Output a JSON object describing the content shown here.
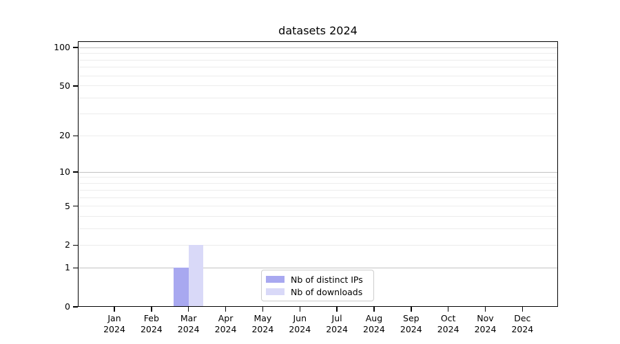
{
  "title": "datasets 2024",
  "chart_data": {
    "type": "bar",
    "title": "datasets 2024",
    "categories": [
      "Jan 2024",
      "Feb 2024",
      "Mar 2024",
      "Apr 2024",
      "May 2024",
      "Jun 2024",
      "Jul 2024",
      "Aug 2024",
      "Sep 2024",
      "Oct 2024",
      "Nov 2024",
      "Dec 2024"
    ],
    "series": [
      {
        "name": "Nb of distinct IPs",
        "color": "#a8a8f0",
        "values": [
          0,
          0,
          1,
          0,
          0,
          0,
          0,
          0,
          0,
          0,
          0,
          0
        ]
      },
      {
        "name": "Nb of downloads",
        "color": "#d9d9f8",
        "values": [
          0,
          0,
          2,
          0,
          0,
          0,
          0,
          0,
          0,
          0,
          0,
          0
        ]
      }
    ],
    "xlabel": "",
    "ylabel": "",
    "yscale": "log1p",
    "ylim": [
      0,
      112
    ],
    "yticks": [
      0,
      1,
      2,
      5,
      10,
      20,
      50,
      100
    ],
    "grid_major": [
      1,
      10,
      100
    ],
    "grid_minor": [
      2,
      3,
      4,
      5,
      6,
      7,
      8,
      9,
      20,
      30,
      40,
      50,
      60,
      70,
      80,
      90
    ],
    "grid": "horizontal major+minor",
    "legend_position": "lower center"
  }
}
